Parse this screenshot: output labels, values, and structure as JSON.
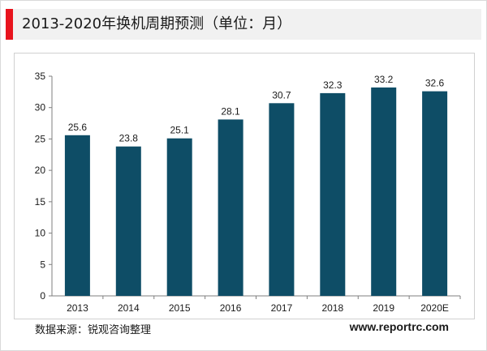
{
  "header": {
    "title": "2013-2020年换机周期预测（单位：月）",
    "accent_color": "#e8141d"
  },
  "chart_data": {
    "type": "bar",
    "title": "2013-2020年换机周期预测（单位：月）",
    "xlabel": "",
    "ylabel": "",
    "categories": [
      "2013",
      "2014",
      "2015",
      "2016",
      "2017",
      "2018",
      "2019",
      "2020E"
    ],
    "values": [
      25.6,
      23.8,
      25.1,
      28.1,
      30.7,
      32.3,
      33.2,
      32.6
    ],
    "data_labels": [
      "25.6",
      "23.8",
      "25.1",
      "28.1",
      "30.7",
      "32.3",
      "33.2",
      "32.6"
    ],
    "ylim": [
      0,
      35
    ],
    "yticks": [
      0,
      5,
      10,
      15,
      20,
      25,
      30,
      35
    ],
    "bar_color": "#0e4d66",
    "grid": false,
    "legend": "none"
  },
  "footer": {
    "source": "数据来源：锐观咨询整理",
    "website": "www.reportrc.com"
  }
}
